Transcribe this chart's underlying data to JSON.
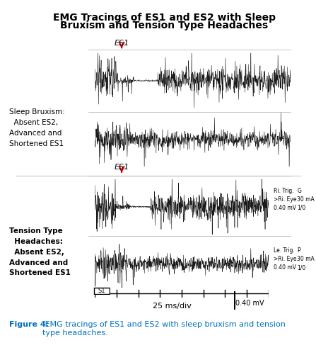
{
  "title_line1": "EMG Tracings of ES1 and ES2 with Sleep",
  "title_line2": "Bruxism and Tension Type Headaches",
  "title_fontsize": 10,
  "title_fontweight": "bold",
  "caption_color_bold": "#0070c0",
  "left_label_bruxism": "Sleep Bruxism:\n  Absent ES2,\nAdvanced and\nShortened ES1",
  "left_label_tension": "Tension Type\n  Headaches:\n  Absent ES2,\nAdvanced and\nShortened ES1",
  "es1_label": "ES1",
  "arrow_color": "#cc0000",
  "x_axis_label": "25 ms/div",
  "scale_label": "0.40 mV",
  "s1_label": "S1",
  "ri_trig_label": "Ri. Trig.\n>Ri. Eye\n0.40 mV",
  "le_trig_label": "Le. Trig.\n>Ri. Eye\n0.40 mV",
  "g_label": "G\n30 mA\n1/0",
  "p_label": "P\n30 mA\n1/0",
  "bg_color": "#ffffff",
  "waveform_color": "#1a1a1a",
  "separator_color": "#cccccc",
  "seed": 42,
  "n_points": 800
}
